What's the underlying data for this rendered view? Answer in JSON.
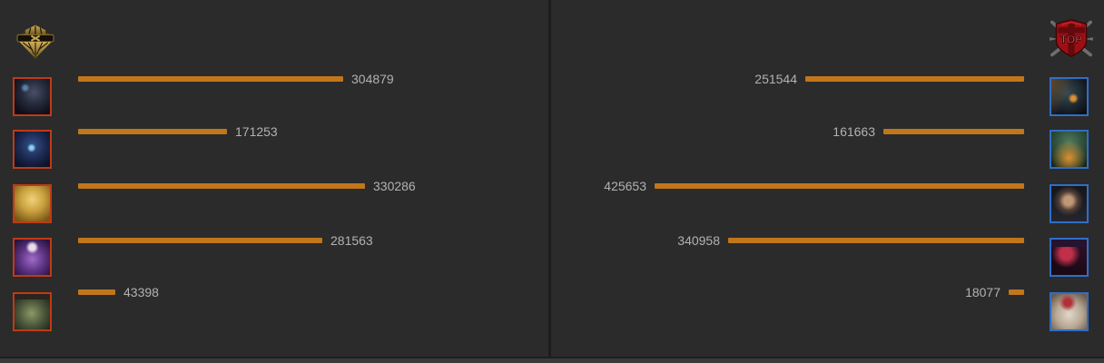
{
  "page": {
    "background": "#2b2b2b"
  },
  "left": {
    "logo_icon": "gold-ornate-emblem-logo",
    "portrait_border_color": "#bf3a16",
    "portraits": [
      "dark-armored-champion-icon",
      "blue-glow-champion-icon",
      "golden-champion-icon",
      "purple-crowned-champion-icon",
      "green-riverbeast-champion-icon"
    ],
    "values": [
      "304879",
      "171253",
      "330286",
      "281563",
      "43398"
    ]
  },
  "right": {
    "logo_icon": "red-top-shield-logo",
    "logo_text": "TOP",
    "portrait_border_color": "#2f6ec8",
    "portraits": [
      "orange-eyed-dark-champion-icon",
      "green-orange-spirit-champion-icon",
      "dark-masked-champion-icon",
      "crimson-haired-champion-icon",
      "white-haired-champion-icon"
    ],
    "values": [
      "251544",
      "161663",
      "425653",
      "340958",
      "18077"
    ]
  },
  "colors": {
    "background": "#2b2b2b",
    "bar": "#c1761c",
    "value_text": "#b2b2b2",
    "divider": "#1d1d1d",
    "left_border": "#bf3a16",
    "right_border": "#2f6ec8"
  },
  "chart_data": {
    "type": "bar",
    "orientation": "horizontal",
    "title": "",
    "xlabel": "",
    "ylabel": "",
    "value_labels_shown": true,
    "grid": false,
    "legend": "team logos top, champion portrait per row",
    "categories": [
      "row-1",
      "row-2",
      "row-3",
      "row-4",
      "row-5"
    ],
    "value_axis_max": 425653,
    "bar_color": "#c1761c",
    "teams": [
      {
        "name": "left-team",
        "side": "left",
        "values": [
          304879,
          171253,
          330286,
          281563,
          43398
        ]
      },
      {
        "name": "right-team",
        "side": "right",
        "values": [
          251544,
          161663,
          425653,
          340958,
          18077
        ]
      }
    ]
  }
}
